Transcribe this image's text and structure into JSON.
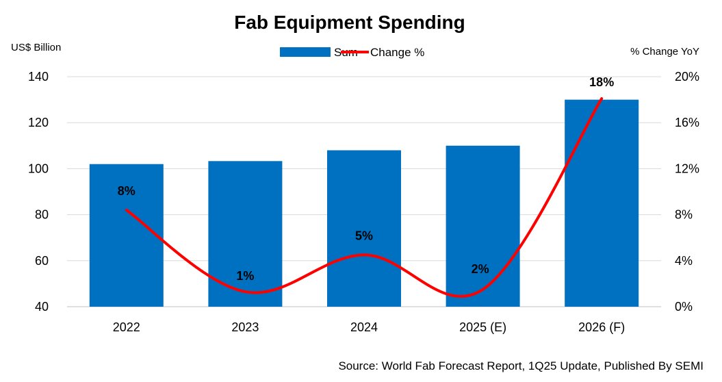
{
  "chart_data": {
    "type": "bar",
    "title": "Fab Equipment Spending",
    "ylabel": "US$ Billion",
    "y2label": "% Change YoY",
    "categories": [
      "2022",
      "2023",
      "2024",
      "2025 (E)",
      "2026 (F)"
    ],
    "ylim": [
      40,
      140
    ],
    "yticks": [
      "40",
      "60",
      "80",
      "100",
      "120",
      "140"
    ],
    "y2lim": [
      0,
      20
    ],
    "y2ticks": [
      "0%",
      "4%",
      "8%",
      "12%",
      "16%",
      "20%"
    ],
    "series": [
      {
        "name": "Sum",
        "type": "bar",
        "axis": "left",
        "color": "#0070C0",
        "values": [
          102,
          103.3,
          108,
          110,
          130
        ]
      },
      {
        "name": "Change %",
        "type": "line",
        "axis": "right",
        "color": "#FF0000",
        "smooth": true,
        "values": [
          8.4,
          1.3,
          4.5,
          1.5,
          18.1
        ],
        "labels": [
          "8%",
          "1%",
          "5%",
          "2%",
          "18%"
        ]
      }
    ],
    "legend": "top-center",
    "grid": true,
    "source": "Source: World Fab Forecast Report, 1Q25 Update, Published By SEMI"
  }
}
